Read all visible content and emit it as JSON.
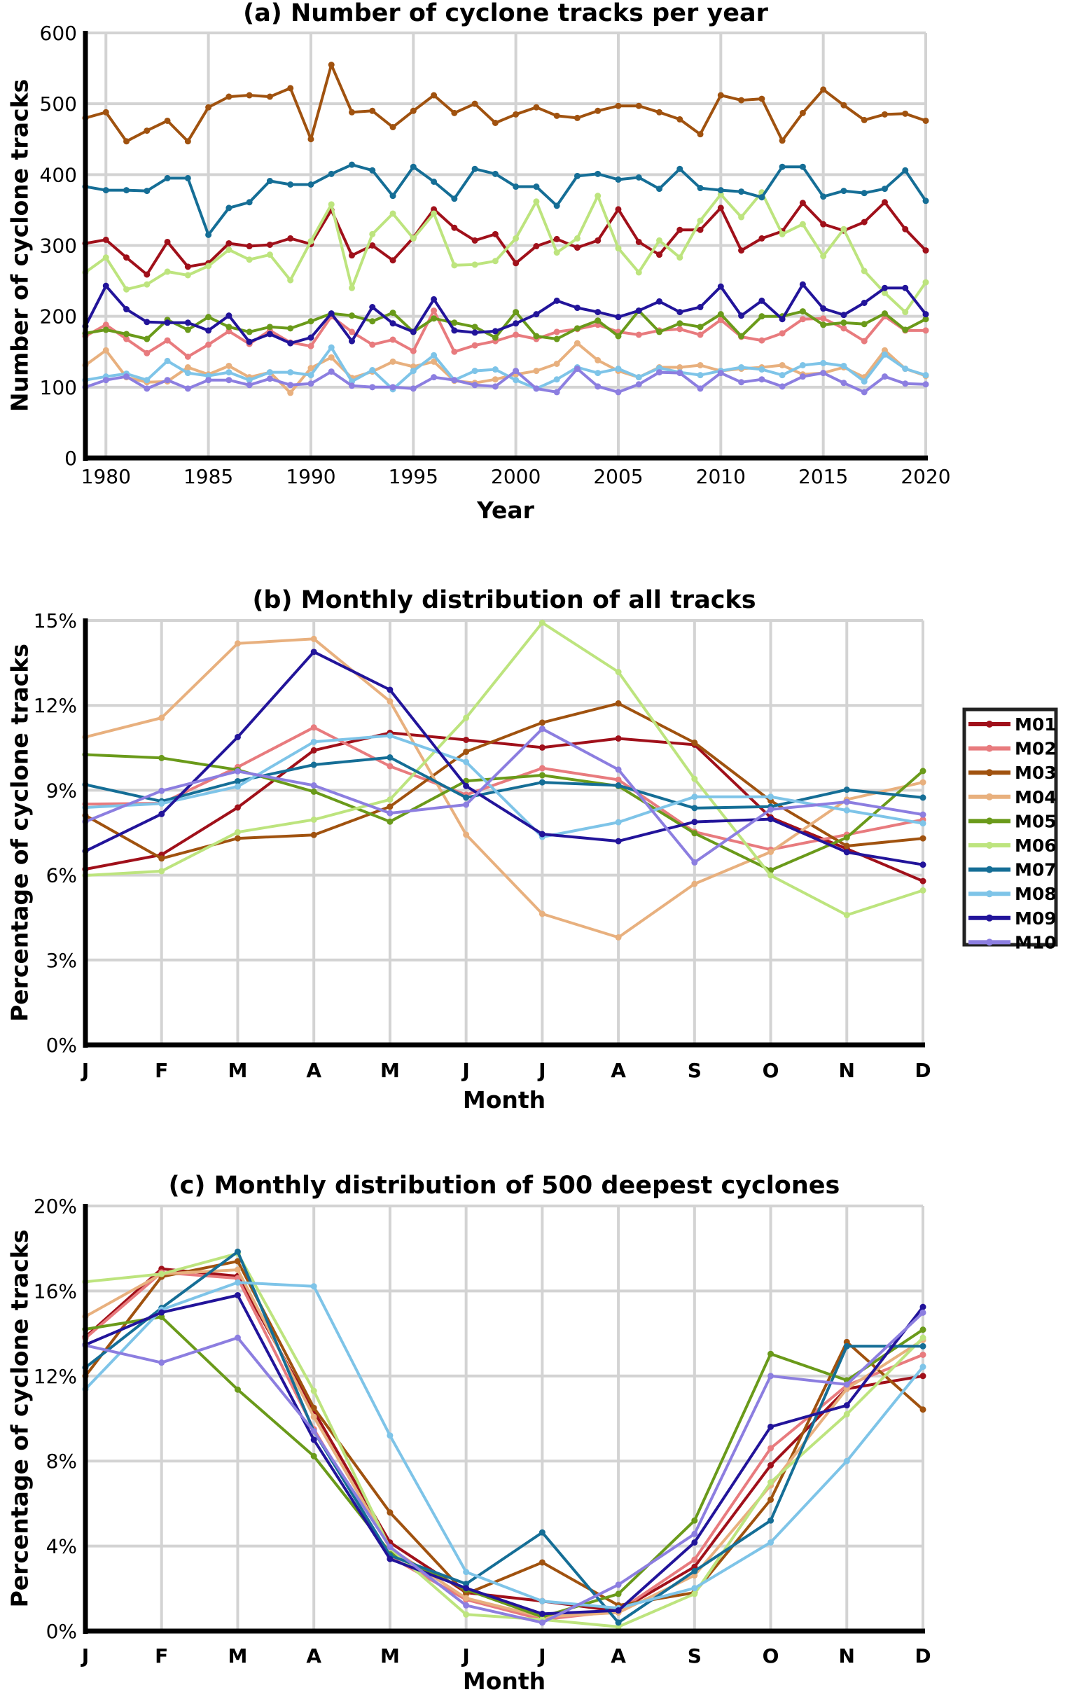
{
  "legend": {
    "entries": [
      "M01",
      "M02",
      "M03",
      "M04",
      "M05",
      "M06",
      "M07",
      "M08",
      "M09",
      "M10"
    ],
    "colors": [
      "#a0101a",
      "#e87b7e",
      "#a0520f",
      "#e8b07e",
      "#6a9a1a",
      "#bde47e",
      "#156e96",
      "#7ec4e8",
      "#22149a",
      "#8c7ee0"
    ]
  },
  "chart_data": [
    {
      "type": "line",
      "title": "(a) Number of cyclone tracks per year",
      "xlabel": "Year",
      "ylabel": "Number of cyclone tracks",
      "xlim": [
        1979,
        2020
      ],
      "ylim": [
        0,
        600
      ],
      "xticks": [
        1980,
        1985,
        1990,
        1995,
        2000,
        2005,
        2010,
        2015,
        2020
      ],
      "xtick_labels": [
        "1980",
        "1985",
        "1990",
        "1995",
        "2000",
        "2005",
        "2010",
        "2015",
        "2020"
      ],
      "yticks": [
        0,
        100,
        200,
        300,
        400,
        500,
        600
      ],
      "ytick_labels": [
        "0",
        "100",
        "200",
        "300",
        "400",
        "500",
        "600"
      ],
      "grid": true,
      "x": [
        1979,
        1980,
        1981,
        1982,
        1983,
        1984,
        1985,
        1986,
        1987,
        1988,
        1989,
        1990,
        1991,
        1992,
        1993,
        1994,
        1995,
        1996,
        1997,
        1998,
        1999,
        2000,
        2001,
        2002,
        2003,
        2004,
        2005,
        2006,
        2007,
        2008,
        2009,
        2010,
        2011,
        2012,
        2013,
        2014,
        2015,
        2016,
        2017,
        2018,
        2019,
        2020
      ],
      "series": [
        {
          "name": "M01",
          "values": [
            303,
            308,
            283,
            259,
            305,
            270,
            275,
            303,
            299,
            301,
            310,
            302,
            350,
            286,
            300,
            279,
            311,
            351,
            325,
            307,
            316,
            275,
            299,
            309,
            297,
            307,
            351,
            305,
            287,
            322,
            322,
            353,
            293,
            310,
            320,
            360,
            330,
            321,
            333,
            361,
            323,
            293
          ]
        },
        {
          "name": "M02",
          "values": [
            172,
            188,
            168,
            148,
            166,
            143,
            160,
            179,
            161,
            180,
            163,
            158,
            200,
            178,
            160,
            167,
            151,
            208,
            150,
            159,
            165,
            174,
            168,
            178,
            182,
            188,
            178,
            174,
            180,
            182,
            174,
            195,
            171,
            166,
            176,
            196,
            197,
            183,
            165,
            200,
            180,
            180
          ]
        },
        {
          "name": "M03",
          "values": [
            480,
            488,
            447,
            462,
            476,
            447,
            495,
            510,
            512,
            510,
            522,
            450,
            555,
            488,
            490,
            467,
            490,
            512,
            487,
            500,
            473,
            485,
            495,
            483,
            480,
            490,
            497,
            497,
            488,
            478,
            457,
            512,
            505,
            507,
            448,
            487,
            520,
            498,
            477,
            485,
            486,
            476
          ]
        },
        {
          "name": "M04",
          "values": [
            131,
            152,
            114,
            107,
            108,
            128,
            118,
            130,
            114,
            121,
            92,
            127,
            142,
            113,
            122,
            136,
            129,
            136,
            109,
            106,
            111,
            118,
            123,
            133,
            162,
            138,
            123,
            114,
            128,
            128,
            131,
            123,
            126,
            128,
            131,
            118,
            120,
            128,
            114,
            152,
            126,
            116
          ]
        },
        {
          "name": "M05",
          "values": [
            176,
            181,
            175,
            168,
            195,
            181,
            199,
            185,
            178,
            185,
            183,
            193,
            204,
            201,
            193,
            205,
            178,
            197,
            191,
            185,
            170,
            206,
            172,
            168,
            183,
            194,
            172,
            208,
            178,
            190,
            185,
            203,
            172,
            200,
            200,
            207,
            188,
            191,
            189,
            204,
            181,
            196
          ]
        },
        {
          "name": "M06",
          "values": [
            262,
            283,
            238,
            245,
            263,
            258,
            271,
            294,
            280,
            287,
            251,
            306,
            358,
            240,
            316,
            345,
            310,
            345,
            272,
            273,
            278,
            310,
            362,
            290,
            310,
            370,
            296,
            262,
            307,
            283,
            335,
            372,
            340,
            375,
            316,
            330,
            285,
            323,
            264,
            233,
            206,
            248
          ]
        },
        {
          "name": "M07",
          "values": [
            383,
            378,
            378,
            377,
            395,
            395,
            315,
            353,
            361,
            391,
            386,
            386,
            401,
            414,
            406,
            370,
            411,
            390,
            366,
            408,
            401,
            383,
            383,
            356,
            398,
            401,
            393,
            396,
            380,
            408,
            381,
            378,
            376,
            368,
            411,
            411,
            369,
            377,
            374,
            380,
            406,
            363
          ]
        },
        {
          "name": "M08",
          "values": [
            110,
            115,
            119,
            110,
            137,
            120,
            116,
            121,
            110,
            121,
            121,
            117,
            156,
            108,
            124,
            97,
            123,
            145,
            110,
            123,
            125,
            110,
            98,
            111,
            128,
            120,
            126,
            114,
            127,
            121,
            117,
            123,
            128,
            125,
            117,
            131,
            134,
            130,
            108,
            146,
            126,
            117
          ]
        },
        {
          "name": "M09",
          "values": [
            186,
            243,
            210,
            192,
            191,
            191,
            180,
            201,
            164,
            175,
            162,
            170,
            204,
            165,
            213,
            190,
            178,
            224,
            180,
            177,
            179,
            190,
            203,
            222,
            212,
            206,
            199,
            208,
            221,
            206,
            213,
            242,
            201,
            222,
            196,
            245,
            211,
            202,
            219,
            240,
            240,
            203
          ]
        },
        {
          "name": "M10",
          "values": [
            100,
            110,
            115,
            98,
            110,
            98,
            110,
            110,
            103,
            112,
            103,
            105,
            122,
            102,
            100,
            100,
            98,
            114,
            110,
            103,
            101,
            123,
            98,
            93,
            126,
            101,
            93,
            104,
            121,
            120,
            98,
            120,
            107,
            111,
            101,
            115,
            120,
            106,
            93,
            115,
            105,
            104
          ]
        }
      ]
    },
    {
      "type": "line",
      "title": "(b) Monthly distribution of all tracks",
      "xlabel": "Month",
      "ylabel": "Percentage of cyclone tracks",
      "categories": [
        "J",
        "F",
        "M",
        "A",
        "M",
        "J",
        "J",
        "A",
        "S",
        "O",
        "N",
        "D"
      ],
      "ylim": [
        0,
        15
      ],
      "yticks": [
        0,
        3,
        6,
        9,
        12,
        15
      ],
      "ytick_labels": [
        "0%",
        "3%",
        "6%",
        "9%",
        "12%",
        "15%"
      ],
      "grid": true,
      "legend_position": "right",
      "series": [
        {
          "name": "M01",
          "values": [
            6.21,
            6.72,
            8.39,
            10.41,
            11.03,
            10.78,
            10.51,
            10.83,
            10.61,
            8.04,
            6.93,
            5.79
          ]
        },
        {
          "name": "M02",
          "values": [
            8.51,
            8.54,
            9.82,
            11.22,
            9.85,
            8.84,
            9.78,
            9.37,
            7.53,
            6.9,
            7.43,
            7.96
          ]
        },
        {
          "name": "M03",
          "values": [
            8.11,
            6.59,
            7.3,
            7.42,
            8.42,
            10.36,
            11.39,
            12.07,
            10.68,
            8.63,
            7.03,
            7.3
          ]
        },
        {
          "name": "M04",
          "values": [
            10.88,
            11.56,
            14.19,
            14.35,
            12.14,
            7.43,
            4.63,
            3.8,
            5.69,
            6.82,
            8.67,
            9.28
          ]
        },
        {
          "name": "M05",
          "values": [
            10.26,
            10.14,
            9.72,
            8.95,
            7.89,
            9.33,
            9.53,
            9.15,
            7.48,
            6.17,
            7.33,
            9.68
          ]
        },
        {
          "name": "M06",
          "values": [
            5.99,
            6.14,
            7.52,
            7.96,
            8.67,
            11.56,
            14.92,
            13.18,
            9.4,
            5.99,
            4.59,
            5.46
          ]
        },
        {
          "name": "M07",
          "values": [
            9.2,
            8.61,
            9.32,
            9.9,
            10.16,
            8.74,
            9.28,
            9.17,
            8.37,
            8.42,
            9.02,
            8.74
          ]
        },
        {
          "name": "M08",
          "values": [
            8.39,
            8.53,
            9.13,
            10.71,
            10.93,
            10.0,
            7.35,
            7.87,
            8.77,
            8.77,
            8.29,
            7.83
          ]
        },
        {
          "name": "M09",
          "values": [
            6.85,
            8.16,
            10.88,
            13.89,
            12.55,
            9.15,
            7.45,
            7.2,
            7.88,
            7.98,
            6.81,
            6.37
          ]
        },
        {
          "name": "M10",
          "values": [
            7.89,
            8.98,
            9.67,
            9.17,
            8.19,
            8.49,
            11.17,
            9.73,
            6.45,
            8.32,
            8.59,
            8.14
          ]
        }
      ]
    },
    {
      "type": "line",
      "title": "(c) Monthly distribution of 500 deepest cyclones",
      "xlabel": "Month",
      "ylabel": "Percentage of cyclone tracks",
      "categories": [
        "J",
        "F",
        "M",
        "A",
        "M",
        "J",
        "J",
        "A",
        "S",
        "O",
        "N",
        "D"
      ],
      "ylim": [
        0,
        20
      ],
      "yticks": [
        0,
        4,
        8,
        12,
        16,
        20
      ],
      "ytick_labels": [
        "0%",
        "4%",
        "8%",
        "12%",
        "16%",
        "20%"
      ],
      "grid": true,
      "series": [
        {
          "name": "M01",
          "values": [
            13.84,
            17.04,
            16.7,
            10.35,
            4.17,
            1.81,
            1.41,
            0.94,
            3.02,
            7.8,
            11.4,
            12.0
          ]
        },
        {
          "name": "M02",
          "values": [
            13.78,
            16.87,
            16.6,
            9.5,
            3.5,
            1.48,
            0.54,
            0.94,
            3.36,
            8.6,
            11.56,
            13.0
          ]
        },
        {
          "name": "M03",
          "values": [
            12.0,
            16.67,
            17.4,
            10.5,
            5.58,
            1.75,
            3.23,
            1.21,
            1.81,
            6.18,
            13.6,
            10.42
          ]
        },
        {
          "name": "M04",
          "values": [
            14.8,
            16.8,
            17.0,
            10.08,
            3.9,
            1.55,
            0.67,
            0.87,
            2.62,
            6.85,
            11.4,
            13.7
          ]
        },
        {
          "name": "M05",
          "values": [
            14.2,
            14.78,
            11.36,
            8.23,
            3.7,
            1.95,
            0.67,
            1.75,
            5.2,
            13.04,
            11.8,
            14.18
          ]
        },
        {
          "name": "M06",
          "values": [
            16.43,
            16.8,
            17.77,
            11.3,
            3.9,
            0.78,
            0.54,
            0.2,
            1.75,
            7.0,
            10.2,
            13.8
          ]
        },
        {
          "name": "M07",
          "values": [
            12.4,
            15.2,
            17.85,
            9.4,
            3.56,
            2.22,
            4.64,
            0.4,
            2.82,
            5.2,
            13.4,
            13.4
          ]
        },
        {
          "name": "M08",
          "values": [
            11.38,
            15.12,
            16.4,
            16.22,
            9.2,
            2.78,
            1.41,
            1.08,
            2.02,
            4.17,
            8.0,
            12.43
          ]
        },
        {
          "name": "M09",
          "values": [
            13.47,
            14.99,
            15.8,
            9.0,
            3.39,
            2.02,
            0.81,
            0.97,
            4.17,
            9.61,
            10.62,
            15.25
          ]
        },
        {
          "name": "M10",
          "values": [
            13.44,
            12.63,
            13.8,
            9.4,
            3.96,
            1.21,
            0.4,
            2.18,
            4.57,
            12.0,
            11.6,
            14.98
          ]
        }
      ]
    }
  ]
}
